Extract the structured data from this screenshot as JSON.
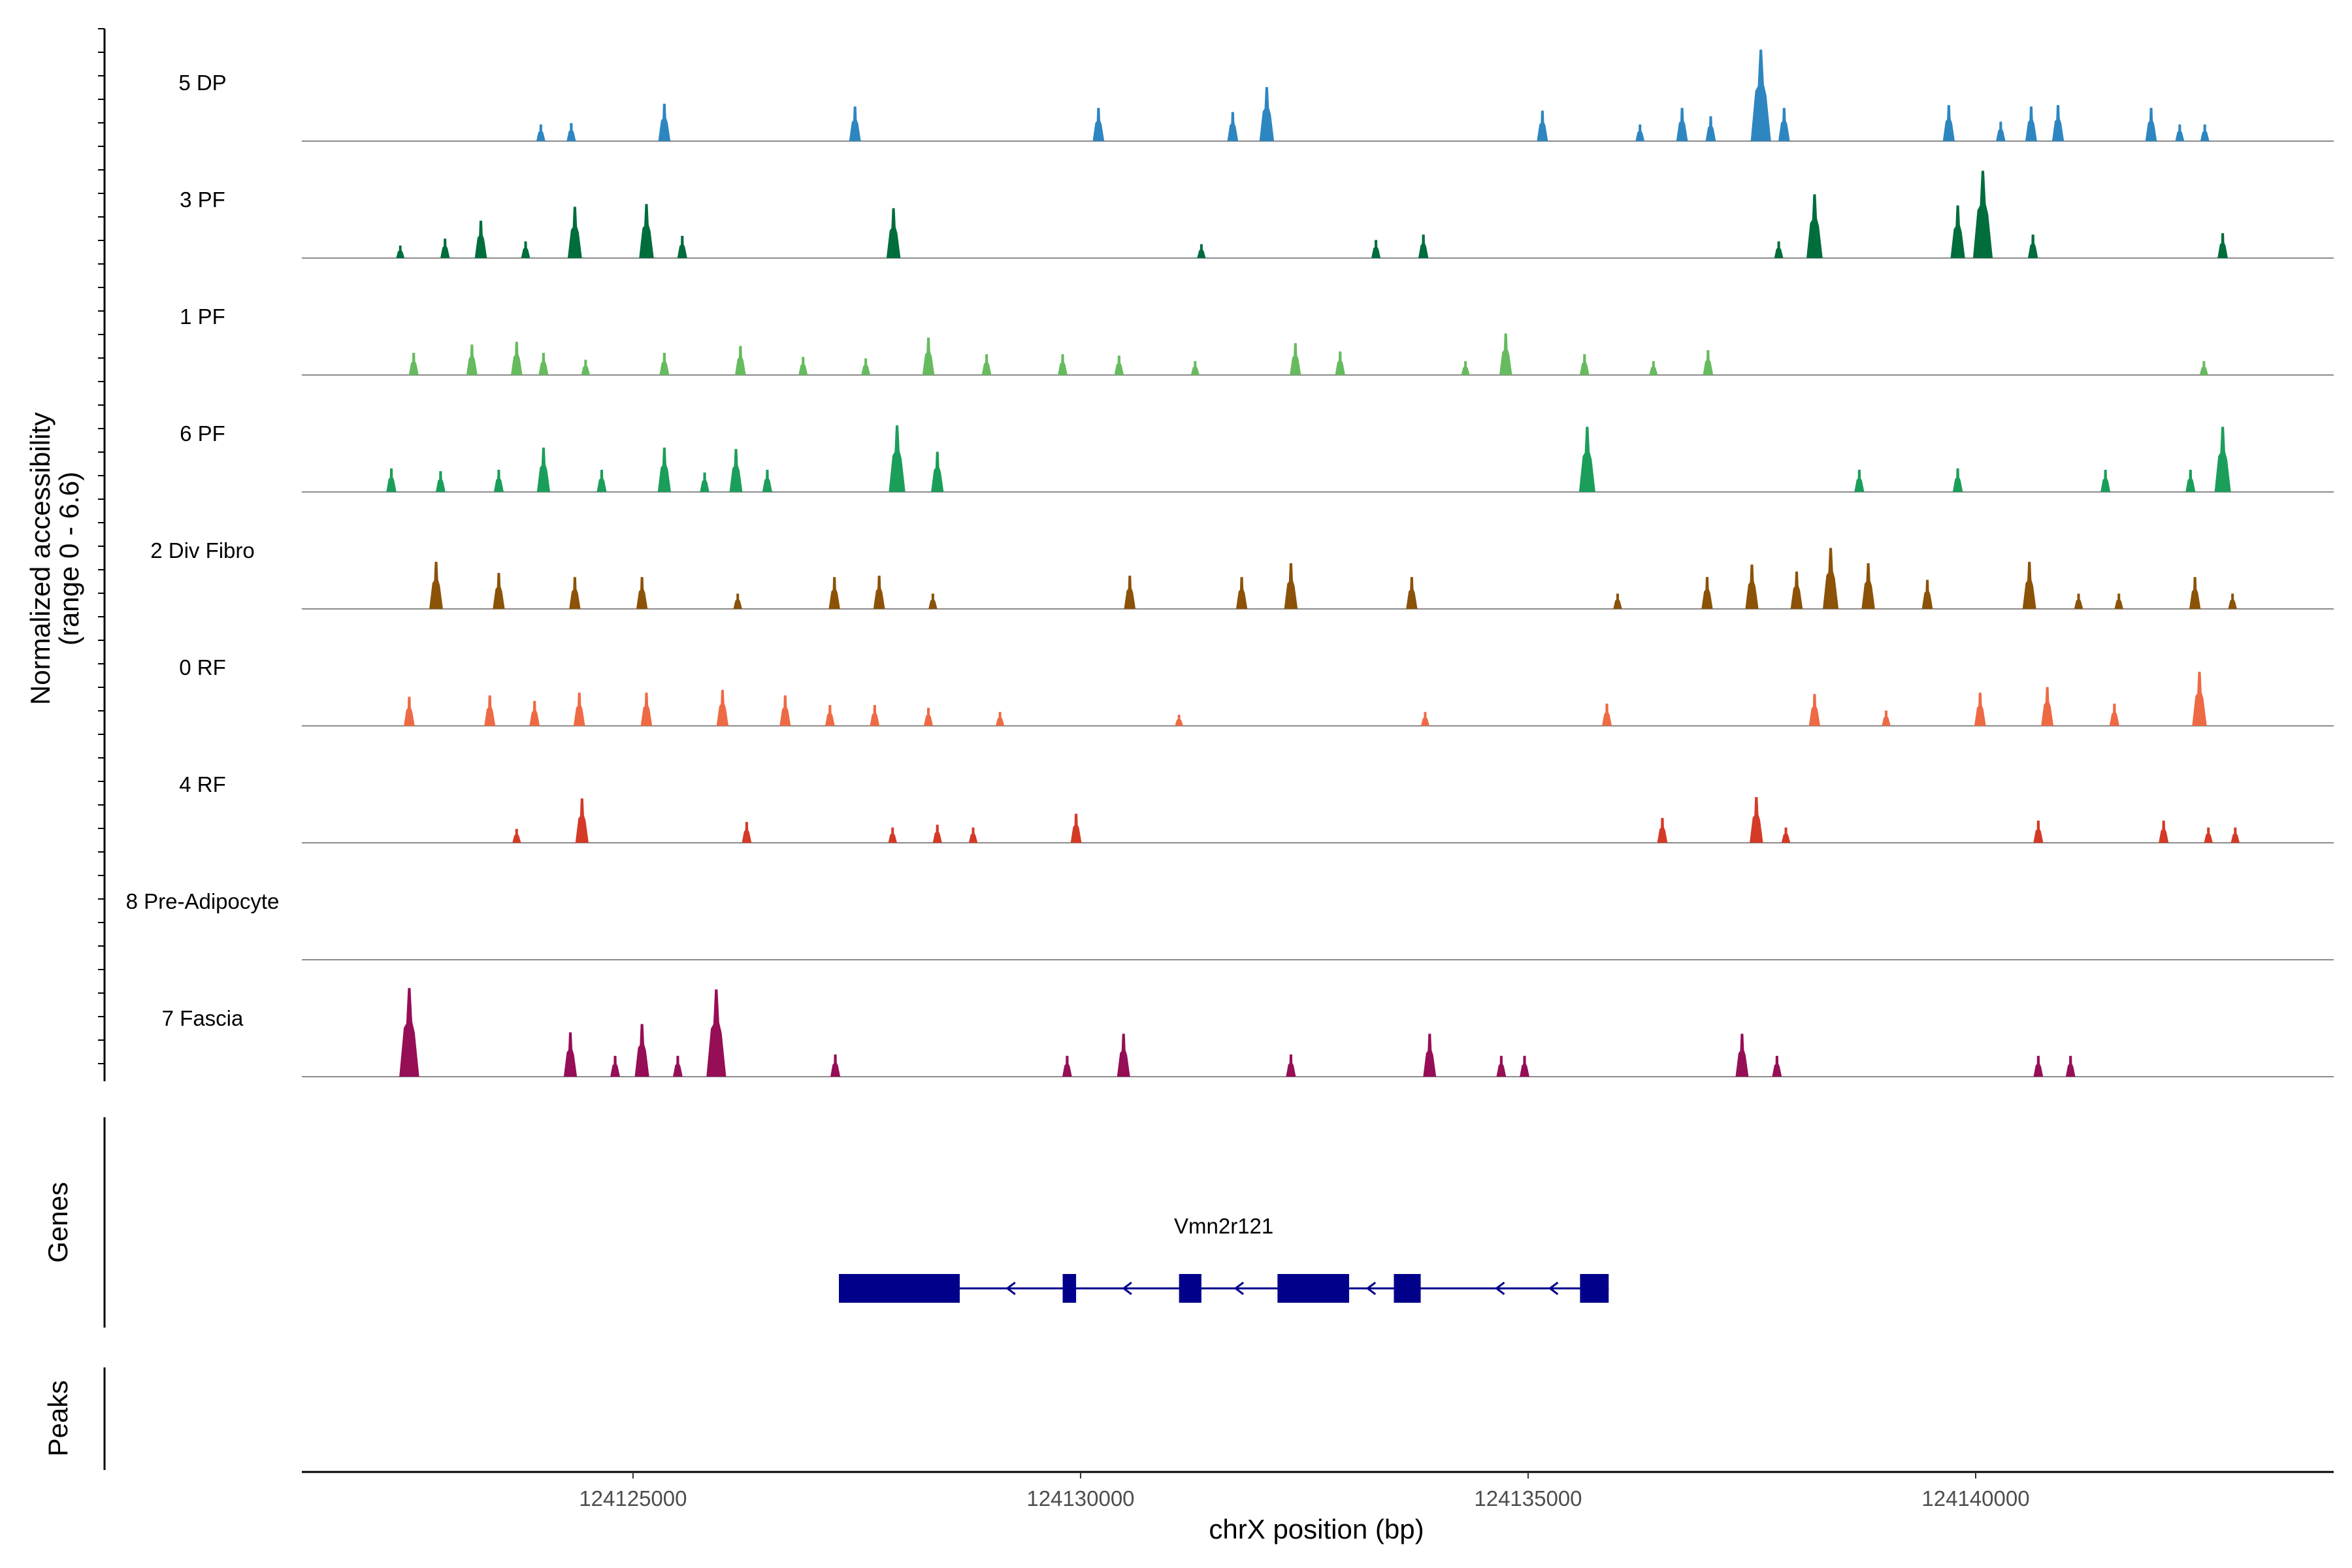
{
  "chart_data": {
    "type": "area",
    "title": "",
    "ylabel_line1": "Normalized accessibility",
    "ylabel_line2": "(range 0 - 6.6)",
    "xlabel": "chrX position (bp)",
    "y_range": [
      0,
      6.6
    ],
    "x_range": [
      124121300,
      124144000
    ],
    "x_ticks": [
      124125000,
      124130000,
      124135000,
      124140000
    ],
    "x_tick_labels": [
      "124125000",
      "124130000",
      "124135000",
      "124140000"
    ],
    "tracks": [
      {
        "name": "5 DP",
        "color": "#2E86C1",
        "peaks": [
          [
            124123970,
            1.2
          ],
          [
            124124310,
            1.3
          ],
          [
            124125350,
            2.7
          ],
          [
            124127480,
            2.5
          ],
          [
            124130200,
            2.4
          ],
          [
            124131700,
            2.1
          ],
          [
            124132080,
            3.9
          ],
          [
            124135160,
            2.2
          ],
          [
            124136250,
            1.2
          ],
          [
            124136720,
            2.4
          ],
          [
            124137040,
            1.8
          ],
          [
            124137600,
            6.6
          ],
          [
            124137860,
            2.4
          ],
          [
            124139700,
            2.6
          ],
          [
            124140280,
            1.4
          ],
          [
            124140620,
            2.5
          ],
          [
            124140920,
            2.6
          ],
          [
            124141960,
            2.4
          ],
          [
            124142280,
            1.2
          ],
          [
            124142560,
            1.2
          ]
        ]
      },
      {
        "name": "3 PF",
        "color": "#006D3C",
        "peaks": [
          [
            124122400,
            0.9
          ],
          [
            124122900,
            1.4
          ],
          [
            124123300,
            2.7
          ],
          [
            124123800,
            1.2
          ],
          [
            124124350,
            3.7
          ],
          [
            124125150,
            3.9
          ],
          [
            124125550,
            1.6
          ],
          [
            124127910,
            3.6
          ],
          [
            124131350,
            1.0
          ],
          [
            124133300,
            1.3
          ],
          [
            124133830,
            1.7
          ],
          [
            124137800,
            1.2
          ],
          [
            124138200,
            4.6
          ],
          [
            124139800,
            3.8
          ],
          [
            124140080,
            6.3
          ],
          [
            124140640,
            1.7
          ],
          [
            124142760,
            1.8
          ]
        ]
      },
      {
        "name": "1 PF",
        "color": "#66BB5E",
        "peaks": [
          [
            124122550,
            1.6
          ],
          [
            124123200,
            2.2
          ],
          [
            124123700,
            2.4
          ],
          [
            124124000,
            1.6
          ],
          [
            124124470,
            1.1
          ],
          [
            124125350,
            1.6
          ],
          [
            124126200,
            2.1
          ],
          [
            124126900,
            1.3
          ],
          [
            124127600,
            1.2
          ],
          [
            124128300,
            2.7
          ],
          [
            124128950,
            1.5
          ],
          [
            124129800,
            1.5
          ],
          [
            124130430,
            1.4
          ],
          [
            124131280,
            1.0
          ],
          [
            124132400,
            2.3
          ],
          [
            124132900,
            1.7
          ],
          [
            124134300,
            1.0
          ],
          [
            124134750,
            3.0
          ],
          [
            124135630,
            1.5
          ],
          [
            124136400,
            1.0
          ],
          [
            124137010,
            1.8
          ],
          [
            124142550,
            1.0
          ]
        ]
      },
      {
        "name": "6 PF",
        "color": "#1B9E5A",
        "peaks": [
          [
            124122300,
            1.7
          ],
          [
            124122850,
            1.5
          ],
          [
            124123500,
            1.6
          ],
          [
            124124000,
            3.2
          ],
          [
            124124650,
            1.6
          ],
          [
            124125350,
            3.2
          ],
          [
            124125800,
            1.4
          ],
          [
            124126150,
            3.1
          ],
          [
            124126500,
            1.6
          ],
          [
            124127950,
            4.8
          ],
          [
            124128400,
            2.9
          ],
          [
            124135660,
            4.7
          ],
          [
            124138700,
            1.6
          ],
          [
            124139800,
            1.7
          ],
          [
            124141450,
            1.6
          ],
          [
            124142400,
            1.6
          ],
          [
            124142760,
            4.7
          ]
        ]
      },
      {
        "name": "2 Div Fibro",
        "color": "#8B5208",
        "peaks": [
          [
            124122800,
            3.4
          ],
          [
            124123500,
            2.6
          ],
          [
            124124350,
            2.3
          ],
          [
            124125100,
            2.3
          ],
          [
            124126170,
            1.1
          ],
          [
            124127250,
            2.3
          ],
          [
            124127750,
            2.4
          ],
          [
            124128350,
            1.1
          ],
          [
            124130550,
            2.4
          ],
          [
            124131800,
            2.3
          ],
          [
            124132350,
            3.3
          ],
          [
            124133700,
            2.3
          ],
          [
            124136000,
            1.1
          ],
          [
            124137000,
            2.3
          ],
          [
            124137500,
            3.2
          ],
          [
            124138000,
            2.7
          ],
          [
            124138380,
            4.4
          ],
          [
            124138800,
            3.3
          ],
          [
            124139460,
            2.1
          ],
          [
            124140600,
            3.4
          ],
          [
            124141150,
            1.1
          ],
          [
            124141600,
            1.1
          ],
          [
            124142450,
            2.3
          ],
          [
            124142870,
            1.1
          ]
        ]
      },
      {
        "name": "0 RF",
        "color": "#EE6A45",
        "peaks": [
          [
            124122500,
            2.1
          ],
          [
            124123400,
            2.2
          ],
          [
            124123900,
            1.8
          ],
          [
            124124400,
            2.4
          ],
          [
            124125150,
            2.4
          ],
          [
            124126000,
            2.6
          ],
          [
            124126700,
            2.2
          ],
          [
            124127200,
            1.5
          ],
          [
            124127700,
            1.5
          ],
          [
            124128300,
            1.3
          ],
          [
            124129100,
            1.0
          ],
          [
            124131100,
            0.8
          ],
          [
            124133850,
            1.0
          ],
          [
            124135880,
            1.6
          ],
          [
            124138200,
            2.3
          ],
          [
            124139000,
            1.1
          ],
          [
            124140050,
            2.4
          ],
          [
            124140800,
            2.8
          ],
          [
            124141550,
            1.6
          ],
          [
            124142500,
            3.9
          ]
        ]
      },
      {
        "name": "4 RF",
        "color": "#D43A26",
        "peaks": [
          [
            124123700,
            1.0
          ],
          [
            124124430,
            3.2
          ],
          [
            124126270,
            1.5
          ],
          [
            124127900,
            1.1
          ],
          [
            124128400,
            1.3
          ],
          [
            124128800,
            1.1
          ],
          [
            124129950,
            2.1
          ],
          [
            124136500,
            1.8
          ],
          [
            124137550,
            3.3
          ],
          [
            124137880,
            1.1
          ],
          [
            124140700,
            1.6
          ],
          [
            124142100,
            1.6
          ],
          [
            124142600,
            1.1
          ],
          [
            124142900,
            1.1
          ]
        ]
      },
      {
        "name": "8 Pre-Adipocyte",
        "color": "#666666",
        "peaks": []
      },
      {
        "name": "7 Fascia",
        "color": "#960E56",
        "peaks": [
          [
            124122500,
            6.4
          ],
          [
            124124300,
            3.2
          ],
          [
            124124800,
            1.5
          ],
          [
            124125100,
            3.8
          ],
          [
            124125500,
            1.5
          ],
          [
            124125930,
            6.3
          ],
          [
            124127260,
            1.6
          ],
          [
            124129850,
            1.5
          ],
          [
            124130480,
            3.1
          ],
          [
            124132350,
            1.6
          ],
          [
            124133900,
            3.1
          ],
          [
            124134700,
            1.5
          ],
          [
            124134960,
            1.5
          ],
          [
            124137390,
            3.1
          ],
          [
            124137780,
            1.5
          ],
          [
            124140700,
            1.5
          ],
          [
            124141060,
            1.5
          ]
        ]
      }
    ],
    "genes_label": "Genes",
    "peaks_label": "Peaks",
    "gene": {
      "name": "Vmn2r121",
      "strand": "-",
      "start": 124127300,
      "end": 124135900,
      "color": "#00008B",
      "exons": [
        [
          124127300,
          124128650
        ],
        [
          124129800,
          124129950
        ],
        [
          124131100,
          124131350
        ],
        [
          124132200,
          124133000
        ],
        [
          124133500,
          124133800
        ],
        [
          124135580,
          124135900
        ]
      ]
    }
  }
}
